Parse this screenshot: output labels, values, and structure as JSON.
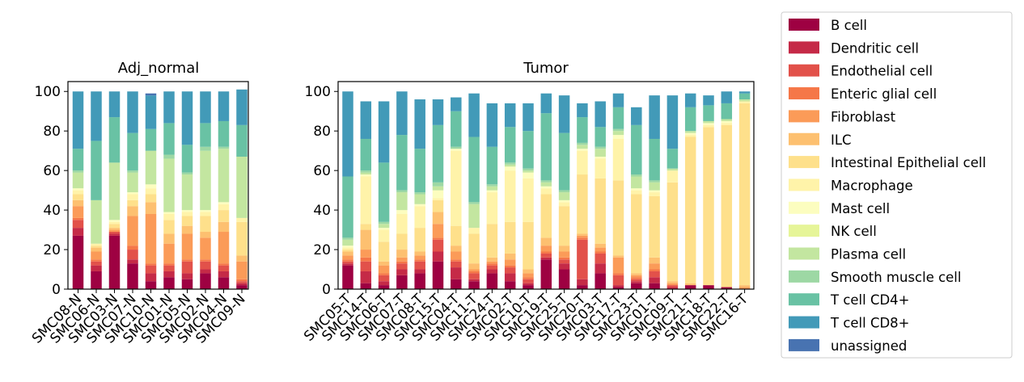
{
  "colors": {
    "B cell": "#9e0142",
    "Dendritic cell": "#c52a47",
    "Endothelial cell": "#e2514a",
    "Enteric glial cell": "#f57748",
    "Fibroblast": "#fb9b58",
    "ILC": "#fdc070",
    "Intestinal Epithelial cell": "#fee08b",
    "Macrophage": "#fff3a9",
    "Mast cell": "#fcfdbf",
    "NK cell": "#e6f598",
    "Plasma cell": "#c3e6a0",
    "Smooth muscle cell": "#9dd8a4",
    "T cell CD4+": "#69c2a4",
    "T cell CD8+": "#429ab8",
    "unassigned": "#4873b1"
  },
  "chart_data": [
    {
      "type": "bar",
      "stacked": true,
      "title": "Adj_normal",
      "xlabel": "",
      "ylabel": "",
      "ylim": [
        0,
        105
      ],
      "yticks": [
        0,
        20,
        40,
        60,
        80,
        100
      ],
      "grid": false,
      "categories": [
        "SMC08-N",
        "SMC06-N",
        "SMC03-N",
        "SMC07-N",
        "SMC10-N",
        "SMC01-N",
        "SMC05-N",
        "SMC02-N",
        "SMC04-N",
        "SMC09-N"
      ],
      "series": [
        {
          "name": "B cell",
          "values": [
            27,
            9,
            27,
            13,
            4,
            6,
            5,
            8,
            6,
            2
          ]
        },
        {
          "name": "Dendritic cell",
          "values": [
            4,
            3,
            1,
            2,
            4,
            3,
            3,
            2,
            3,
            1
          ]
        },
        {
          "name": "Endothelial cell",
          "values": [
            4,
            2,
            1,
            5,
            4,
            3,
            6,
            4,
            3,
            1
          ]
        },
        {
          "name": "Enteric glial cell",
          "values": [
            1,
            1,
            0,
            2,
            1,
            1,
            1,
            1,
            1,
            1
          ]
        },
        {
          "name": "Fibroblast",
          "values": [
            6,
            4,
            1,
            15,
            25,
            10,
            13,
            11,
            16,
            9
          ]
        },
        {
          "name": "ILC",
          "values": [
            3,
            2,
            1,
            5,
            6,
            5,
            4,
            3,
            5,
            3
          ]
        },
        {
          "name": "Intestinal Epithelial cell",
          "values": [
            3,
            1,
            2,
            3,
            4,
            7,
            5,
            8,
            6,
            17
          ]
        },
        {
          "name": "Macrophage",
          "values": [
            2,
            1,
            1,
            3,
            3,
            3,
            2,
            2,
            3,
            2
          ]
        },
        {
          "name": "Mast cell",
          "values": [
            1,
            0,
            1,
            1,
            2,
            1,
            1,
            1,
            1,
            0
          ]
        },
        {
          "name": "NK cell",
          "values": [
            0,
            0,
            0,
            0,
            0,
            0,
            0,
            0,
            0,
            0
          ]
        },
        {
          "name": "Plasma cell",
          "values": [
            8,
            22,
            29,
            10,
            17,
            27,
            18,
            30,
            27,
            31
          ]
        },
        {
          "name": "Smooth muscle cell",
          "values": [
            1,
            0,
            0,
            1,
            0,
            2,
            1,
            2,
            1,
            0
          ]
        },
        {
          "name": "T cell CD4+",
          "values": [
            11,
            30,
            23,
            19,
            11,
            16,
            14,
            12,
            13,
            16
          ]
        },
        {
          "name": "T cell CD8+",
          "values": [
            29,
            25,
            13,
            21,
            17,
            16,
            27,
            16,
            15,
            18
          ]
        },
        {
          "name": "unassigned",
          "values": [
            0,
            0,
            0,
            0,
            1,
            0,
            0,
            0,
            0,
            0
          ]
        }
      ]
    },
    {
      "type": "bar",
      "stacked": true,
      "title": "Tumor",
      "xlabel": "",
      "ylabel": "",
      "ylim": [
        0,
        105
      ],
      "yticks": [
        0,
        20,
        40,
        60,
        80,
        100
      ],
      "grid": false,
      "categories": [
        "SMC05-T",
        "SMC14-T",
        "SMC06-T",
        "SMC07-T",
        "SMC08-T",
        "SMC15-T",
        "SMC04-T",
        "SMC11-T",
        "SMC24-T",
        "SMC02-T",
        "SMC10-T",
        "SMC19-T",
        "SMC25-T",
        "SMC20-T",
        "SMC03-T",
        "SMC17-T",
        "SMC23-T",
        "SMC01-T",
        "SMC09-T",
        "SMC21-T",
        "SMC18-T",
        "SMC22-T",
        "SMC16-T"
      ],
      "series": [
        {
          "name": "B cell",
          "values": [
            12,
            3,
            2,
            7,
            8,
            14,
            5,
            4,
            8,
            4,
            2,
            15,
            10,
            2,
            8,
            1,
            3,
            3,
            0,
            2,
            2,
            1,
            0
          ]
        },
        {
          "name": "Dendritic cell",
          "values": [
            1,
            6,
            2,
            3,
            2,
            5,
            6,
            1,
            2,
            4,
            1,
            1,
            3,
            3,
            5,
            1,
            1,
            3,
            1,
            0,
            0,
            0,
            0
          ]
        },
        {
          "name": "Endothelial cell",
          "values": [
            1,
            5,
            3,
            3,
            4,
            6,
            3,
            3,
            2,
            3,
            2,
            2,
            2,
            20,
            5,
            5,
            1,
            3,
            1,
            0,
            0,
            0,
            0
          ]
        },
        {
          "name": "Enteric glial cell",
          "values": [
            1,
            2,
            1,
            1,
            1,
            1,
            1,
            1,
            1,
            1,
            1,
            1,
            1,
            1,
            1,
            1,
            1,
            1,
            0,
            0,
            0,
            0,
            0
          ]
        },
        {
          "name": "Fibroblast",
          "values": [
            2,
            4,
            4,
            2,
            2,
            7,
            4,
            1,
            1,
            3,
            2,
            3,
            3,
            1,
            2,
            8,
            1,
            3,
            1,
            0,
            0,
            0,
            1
          ]
        },
        {
          "name": "ILC",
          "values": [
            2,
            10,
            2,
            4,
            2,
            6,
            3,
            3,
            2,
            3,
            2,
            4,
            3,
            1,
            2,
            1,
            1,
            3,
            1,
            1,
            0,
            0,
            1
          ]
        },
        {
          "name": "Intestinal Epithelial cell",
          "values": [
            1,
            3,
            10,
            8,
            12,
            6,
            10,
            15,
            17,
            16,
            24,
            22,
            20,
            30,
            33,
            38,
            40,
            31,
            50,
            74,
            80,
            82,
            92
          ]
        },
        {
          "name": "Macrophage",
          "values": [
            1,
            24,
            6,
            10,
            11,
            1,
            38,
            3,
            16,
            26,
            22,
            3,
            2,
            12,
            10,
            21,
            2,
            2,
            6,
            1,
            1,
            1,
            1
          ]
        },
        {
          "name": "Mast cell",
          "values": [
            1,
            1,
            1,
            2,
            1,
            4,
            1,
            0,
            1,
            2,
            3,
            1,
            1,
            1,
            1,
            2,
            1,
            1,
            0,
            1,
            1,
            1,
            0
          ]
        },
        {
          "name": "NK cell",
          "values": [
            0,
            0,
            0,
            0,
            0,
            0,
            0,
            0,
            0,
            0,
            0,
            0,
            0,
            0,
            0,
            0,
            0,
            0,
            0,
            0,
            0,
            0,
            0
          ]
        },
        {
          "name": "Plasma cell",
          "values": [
            3,
            1,
            2,
            9,
            5,
            2,
            0,
            12,
            2,
            1,
            1,
            2,
            4,
            2,
            4,
            2,
            6,
            4,
            1,
            1,
            1,
            1,
            1
          ]
        },
        {
          "name": "Smooth muscle cell",
          "values": [
            1,
            1,
            1,
            1,
            1,
            2,
            1,
            1,
            1,
            1,
            1,
            1,
            1,
            1,
            1,
            1,
            1,
            1,
            0,
            0,
            0,
            0,
            0
          ]
        },
        {
          "name": "T cell CD4+",
          "values": [
            31,
            16,
            30,
            28,
            22,
            29,
            18,
            33,
            19,
            18,
            19,
            34,
            29,
            13,
            10,
            11,
            25,
            21,
            10,
            12,
            8,
            8,
            3
          ]
        },
        {
          "name": "T cell CD8+",
          "values": [
            43,
            19,
            31,
            22,
            25,
            13,
            7,
            22,
            22,
            12,
            14,
            10,
            19,
            7,
            13,
            7,
            9,
            22,
            27,
            7,
            5,
            6,
            1
          ]
        },
        {
          "name": "unassigned",
          "values": [
            0,
            0,
            0,
            0,
            0,
            0,
            0,
            0,
            0,
            0,
            0,
            0,
            0,
            0,
            0,
            0,
            0,
            0,
            0,
            0,
            0,
            0,
            0
          ]
        }
      ]
    }
  ],
  "legend": {
    "placement": "right",
    "entries": [
      "B cell",
      "Dendritic cell",
      "Endothelial cell",
      "Enteric glial cell",
      "Fibroblast",
      "ILC",
      "Intestinal Epithelial cell",
      "Macrophage",
      "Mast cell",
      "NK cell",
      "Plasma cell",
      "Smooth muscle cell",
      "T cell CD4+",
      "T cell CD8+",
      "unassigned"
    ]
  }
}
